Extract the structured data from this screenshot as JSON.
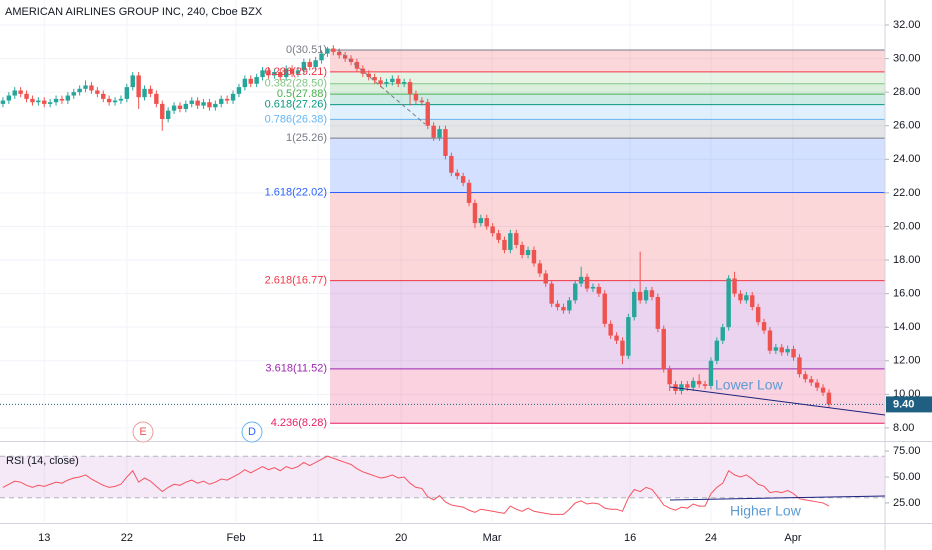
{
  "chart_data": {
    "type": "candlestick",
    "title": "AMERICAN AIRLINES GROUP INC, 240, Cboe BZX",
    "colors": {
      "up": "#26a69a",
      "down": "#ef5350"
    },
    "grid": true,
    "xlim": [
      -0.5,
      149.5
    ],
    "xticks": [
      {
        "value": 7,
        "label": "13"
      },
      {
        "value": 21,
        "label": "22"
      },
      {
        "value": 39.5,
        "label": "Feb"
      },
      {
        "value": 53.4,
        "label": "11"
      },
      {
        "value": 67.5,
        "label": "20"
      },
      {
        "value": 82.9,
        "label": "Mar"
      },
      {
        "value": 106.3,
        "label": "16"
      },
      {
        "value": 120,
        "label": "24"
      },
      {
        "value": 133.9,
        "label": "Apr"
      }
    ],
    "ylim": [
      7.22,
      33.49
    ],
    "yticks": [
      {
        "value": 32,
        "label": "32.00"
      },
      {
        "value": 30,
        "label": "30.00"
      },
      {
        "value": 28,
        "label": "28.00"
      },
      {
        "value": 26,
        "label": "26.00"
      },
      {
        "value": 24,
        "label": "24.00"
      },
      {
        "value": 22,
        "label": "22.00"
      },
      {
        "value": 20,
        "label": "20.00"
      },
      {
        "value": 18,
        "label": "18.00"
      },
      {
        "value": 16,
        "label": "16.00"
      },
      {
        "value": 14,
        "label": "14.00"
      },
      {
        "value": 12,
        "label": "12.00"
      },
      {
        "value": 10,
        "label": "10.00"
      },
      {
        "value": 8,
        "label": "8.00"
      }
    ],
    "last_price": 9.4,
    "last_price_label": "9.40",
    "last_price_color": "#1f5f82",
    "annotations": [
      "Lower Low",
      "Higher Low"
    ],
    "events": [
      "E",
      "D"
    ],
    "fib_levels": [
      {
        "label": "0(30.51)",
        "value": 30.51,
        "color": "#787b86"
      },
      {
        "label": "0.236(29.21)",
        "value": 29.21,
        "color": "#f23645"
      },
      {
        "label": "0.382(28.50)",
        "value": 28.5,
        "color": "#81c784"
      },
      {
        "label": "0.5(27.88)",
        "value": 27.88,
        "color": "#4caf50"
      },
      {
        "label": "0.618(27.26)",
        "value": 27.26,
        "color": "#089981"
      },
      {
        "label": "0.786(26.38)",
        "value": 26.38,
        "color": "#64b5f6"
      },
      {
        "label": "1(25.26)",
        "value": 25.26,
        "color": "#787b86"
      },
      {
        "label": "1.618(22.02)",
        "value": 22.02,
        "color": "#2962ff"
      },
      {
        "label": "2.618(16.77)",
        "value": 16.77,
        "color": "#f23645"
      },
      {
        "label": "3.618(11.52)",
        "value": 11.52,
        "color": "#9c27b0"
      },
      {
        "label": "4.236(8.28)",
        "value": 8.28,
        "color": "#e91e63"
      }
    ],
    "ohlc": [
      [
        27.3,
        27.7,
        27.1,
        27.5
      ],
      [
        27.5,
        28.0,
        27.3,
        27.8
      ],
      [
        27.8,
        28.3,
        27.6,
        28.1
      ],
      [
        28.1,
        28.3,
        27.7,
        27.9
      ],
      [
        27.9,
        28.1,
        27.4,
        27.6
      ],
      [
        27.6,
        27.8,
        27.2,
        27.4
      ],
      [
        27.4,
        27.7,
        27.2,
        27.5
      ],
      [
        27.5,
        27.7,
        27.1,
        27.3
      ],
      [
        27.3,
        27.6,
        27.1,
        27.4
      ],
      [
        27.4,
        27.8,
        27.2,
        27.6
      ],
      [
        27.6,
        27.8,
        27.3,
        27.5
      ],
      [
        27.5,
        28.0,
        27.3,
        27.8
      ],
      [
        27.8,
        28.2,
        27.6,
        28.0
      ],
      [
        28.0,
        28.4,
        27.8,
        28.2
      ],
      [
        28.2,
        28.7,
        28.0,
        28.4
      ],
      [
        28.4,
        28.6,
        27.9,
        28.1
      ],
      [
        28.1,
        28.3,
        27.7,
        27.9
      ],
      [
        27.9,
        28.1,
        27.4,
        27.6
      ],
      [
        27.6,
        27.8,
        27.2,
        27.4
      ],
      [
        27.4,
        27.7,
        27.2,
        27.5
      ],
      [
        27.5,
        27.8,
        27.3,
        27.6
      ],
      [
        27.6,
        28.5,
        27.4,
        28.3
      ],
      [
        28.3,
        29.2,
        28.1,
        29.0
      ],
      [
        29.0,
        29.2,
        27.0,
        27.7
      ],
      [
        27.7,
        28.4,
        27.5,
        28.2
      ],
      [
        28.2,
        28.4,
        27.7,
        27.9
      ],
      [
        27.9,
        28.1,
        27.1,
        27.3
      ],
      [
        27.3,
        27.5,
        25.7,
        26.4
      ],
      [
        26.4,
        27.1,
        26.2,
        26.9
      ],
      [
        26.9,
        27.4,
        26.7,
        27.2
      ],
      [
        27.2,
        27.4,
        26.8,
        27.0
      ],
      [
        27.0,
        27.5,
        26.8,
        27.3
      ],
      [
        27.3,
        27.7,
        27.1,
        27.5
      ],
      [
        27.5,
        27.7,
        27.0,
        27.2
      ],
      [
        27.2,
        27.6,
        27.0,
        27.4
      ],
      [
        27.4,
        27.6,
        26.9,
        27.1
      ],
      [
        27.1,
        27.5,
        26.9,
        27.3
      ],
      [
        27.3,
        27.8,
        27.1,
        27.6
      ],
      [
        27.6,
        27.8,
        27.3,
        27.5
      ],
      [
        27.5,
        28.1,
        27.3,
        27.9
      ],
      [
        27.9,
        28.5,
        27.7,
        28.3
      ],
      [
        28.3,
        29.0,
        28.1,
        28.8
      ],
      [
        28.8,
        29.0,
        28.3,
        28.5
      ],
      [
        28.5,
        29.1,
        28.3,
        28.9
      ],
      [
        28.9,
        29.5,
        28.7,
        29.3
      ],
      [
        29.3,
        29.5,
        28.8,
        29.0
      ],
      [
        29.0,
        29.4,
        28.8,
        29.2
      ],
      [
        29.2,
        29.4,
        28.7,
        28.9
      ],
      [
        28.9,
        29.6,
        28.7,
        29.4
      ],
      [
        29.4,
        29.6,
        28.9,
        29.1
      ],
      [
        29.1,
        29.5,
        28.9,
        29.3
      ],
      [
        29.3,
        30.0,
        29.1,
        29.8
      ],
      [
        29.8,
        30.0,
        29.3,
        29.5
      ],
      [
        29.5,
        30.1,
        29.3,
        29.9
      ],
      [
        29.9,
        30.5,
        29.7,
        30.3
      ],
      [
        30.3,
        30.7,
        30.1,
        30.6
      ],
      [
        30.6,
        30.8,
        30.2,
        30.4
      ],
      [
        30.4,
        30.6,
        30.0,
        30.2
      ],
      [
        30.2,
        30.4,
        29.8,
        30.0
      ],
      [
        30.0,
        30.2,
        29.6,
        29.8
      ],
      [
        29.8,
        30.0,
        29.2,
        29.4
      ],
      [
        29.4,
        29.6,
        28.9,
        29.1
      ],
      [
        29.1,
        29.3,
        28.7,
        28.9
      ],
      [
        28.9,
        29.1,
        28.5,
        28.7
      ],
      [
        28.7,
        28.9,
        28.3,
        28.5
      ],
      [
        28.5,
        28.8,
        28.3,
        28.6
      ],
      [
        28.6,
        29.0,
        28.4,
        28.8
      ],
      [
        28.8,
        29.0,
        28.3,
        28.5
      ],
      [
        28.5,
        28.8,
        28.3,
        28.6
      ],
      [
        28.6,
        28.8,
        27.2,
        27.9
      ],
      [
        27.9,
        28.1,
        27.3,
        27.5
      ],
      [
        27.5,
        27.7,
        27.2,
        27.4
      ],
      [
        27.4,
        27.6,
        25.8,
        26.0
      ],
      [
        26.0,
        26.2,
        25.1,
        25.3
      ],
      [
        25.3,
        26.0,
        25.1,
        25.8
      ],
      [
        25.8,
        26.0,
        24.0,
        24.2
      ],
      [
        24.2,
        24.4,
        23.0,
        23.2
      ],
      [
        23.2,
        23.4,
        22.8,
        23.0
      ],
      [
        23.0,
        23.2,
        22.4,
        22.6
      ],
      [
        22.6,
        22.8,
        21.2,
        21.4
      ],
      [
        21.4,
        21.6,
        19.9,
        20.2
      ],
      [
        20.2,
        20.7,
        20.0,
        20.5
      ],
      [
        20.5,
        20.7,
        19.8,
        20.0
      ],
      [
        20.0,
        20.2,
        19.4,
        19.6
      ],
      [
        19.6,
        19.8,
        19.0,
        19.2
      ],
      [
        19.2,
        19.4,
        18.4,
        18.6
      ],
      [
        18.6,
        19.8,
        18.4,
        19.6
      ],
      [
        19.6,
        19.8,
        18.7,
        18.9
      ],
      [
        18.9,
        19.1,
        18.1,
        18.3
      ],
      [
        18.3,
        18.8,
        18.1,
        18.6
      ],
      [
        18.6,
        18.8,
        17.6,
        17.8
      ],
      [
        17.8,
        18.0,
        17.0,
        17.2
      ],
      [
        17.2,
        17.4,
        16.4,
        16.6
      ],
      [
        16.6,
        16.8,
        15.2,
        15.4
      ],
      [
        15.4,
        15.6,
        15.0,
        15.2
      ],
      [
        15.2,
        15.4,
        14.8,
        15.0
      ],
      [
        15.0,
        15.8,
        14.8,
        15.6
      ],
      [
        15.6,
        16.8,
        15.4,
        16.6
      ],
      [
        16.6,
        17.6,
        16.4,
        17.0
      ],
      [
        17.0,
        17.2,
        16.1,
        16.3
      ],
      [
        16.3,
        16.6,
        16.1,
        16.4
      ],
      [
        16.4,
        16.6,
        15.8,
        16.0
      ],
      [
        16.0,
        16.2,
        14.0,
        14.2
      ],
      [
        14.2,
        14.4,
        13.3,
        13.5
      ],
      [
        13.5,
        13.7,
        13.0,
        13.2
      ],
      [
        13.2,
        13.4,
        11.8,
        12.3
      ],
      [
        12.3,
        14.8,
        12.1,
        14.6
      ],
      [
        14.6,
        16.3,
        14.4,
        16.1
      ],
      [
        16.1,
        18.5,
        15.4,
        15.6
      ],
      [
        15.6,
        16.4,
        15.4,
        16.2
      ],
      [
        16.2,
        16.4,
        15.6,
        15.8
      ],
      [
        15.8,
        16.0,
        13.7,
        13.9
      ],
      [
        13.9,
        14.1,
        11.3,
        11.5
      ],
      [
        11.5,
        11.7,
        10.2,
        10.6
      ],
      [
        10.6,
        10.8,
        10.0,
        10.2
      ],
      [
        10.2,
        10.8,
        10.0,
        10.6
      ],
      [
        10.6,
        10.8,
        10.2,
        10.4
      ],
      [
        10.4,
        11.0,
        10.2,
        10.8
      ],
      [
        10.8,
        11.2,
        10.4,
        10.6
      ],
      [
        10.6,
        10.8,
        10.3,
        10.5
      ],
      [
        10.5,
        12.2,
        10.3,
        12.0
      ],
      [
        12.0,
        13.4,
        11.8,
        13.2
      ],
      [
        13.2,
        14.2,
        13.0,
        14.0
      ],
      [
        14.0,
        17.1,
        13.8,
        16.9
      ],
      [
        16.9,
        17.3,
        15.8,
        16.0
      ],
      [
        16.0,
        16.2,
        15.4,
        15.6
      ],
      [
        15.6,
        16.1,
        15.4,
        15.9
      ],
      [
        15.9,
        16.1,
        15.0,
        15.2
      ],
      [
        15.2,
        15.4,
        14.1,
        14.3
      ],
      [
        14.3,
        14.5,
        13.6,
        13.8
      ],
      [
        13.8,
        14.0,
        12.4,
        12.6
      ],
      [
        12.6,
        13.0,
        12.4,
        12.8
      ],
      [
        12.8,
        13.0,
        12.3,
        12.5
      ],
      [
        12.5,
        12.9,
        12.3,
        12.7
      ],
      [
        12.7,
        12.9,
        12.0,
        12.2
      ],
      [
        12.2,
        12.4,
        11.0,
        11.2
      ],
      [
        11.2,
        11.4,
        10.7,
        10.9
      ],
      [
        10.9,
        11.1,
        10.5,
        10.7
      ],
      [
        10.7,
        10.9,
        10.2,
        10.4
      ],
      [
        10.4,
        10.6,
        9.9,
        10.1
      ],
      [
        10.1,
        10.3,
        9.2,
        9.4
      ]
    ],
    "rsi": {
      "title": "RSI (14, close)",
      "color": "#f7525f",
      "band_color": "#9c27b0",
      "bands": [
        70,
        30
      ],
      "ylim": [
        6.7,
        83.65
      ],
      "yticks": [
        {
          "value": 75,
          "label": "75.00"
        },
        {
          "value": 50,
          "label": "50.00"
        },
        {
          "value": 25,
          "label": "25.00"
        }
      ],
      "values": [
        40,
        43,
        46,
        45,
        42,
        40,
        42,
        41,
        43,
        45,
        44,
        47,
        49,
        50,
        52,
        48,
        45,
        42,
        40,
        41,
        43,
        50,
        56,
        45,
        49,
        46,
        41,
        36,
        40,
        43,
        42,
        45,
        47,
        44,
        46,
        43,
        45,
        48,
        47,
        50,
        53,
        57,
        54,
        57,
        60,
        57,
        59,
        56,
        60,
        58,
        60,
        64,
        61,
        64,
        67,
        70,
        68,
        66,
        64,
        62,
        58,
        55,
        53,
        51,
        49,
        50,
        52,
        49,
        50,
        44,
        40,
        39,
        31,
        28,
        32,
        26,
        23,
        22,
        21,
        18,
        16,
        19,
        18,
        17,
        16,
        15,
        22,
        19,
        17,
        20,
        17,
        16,
        15,
        14,
        14,
        14,
        19,
        25,
        27,
        24,
        25,
        24,
        20,
        19,
        19,
        17,
        30,
        38,
        36,
        40,
        38,
        31,
        23,
        20,
        18,
        21,
        20,
        24,
        22,
        22,
        34,
        40,
        44,
        56,
        52,
        50,
        52,
        48,
        43,
        41,
        35,
        36,
        35,
        37,
        34,
        29,
        28,
        27,
        26,
        25,
        22
      ]
    }
  }
}
